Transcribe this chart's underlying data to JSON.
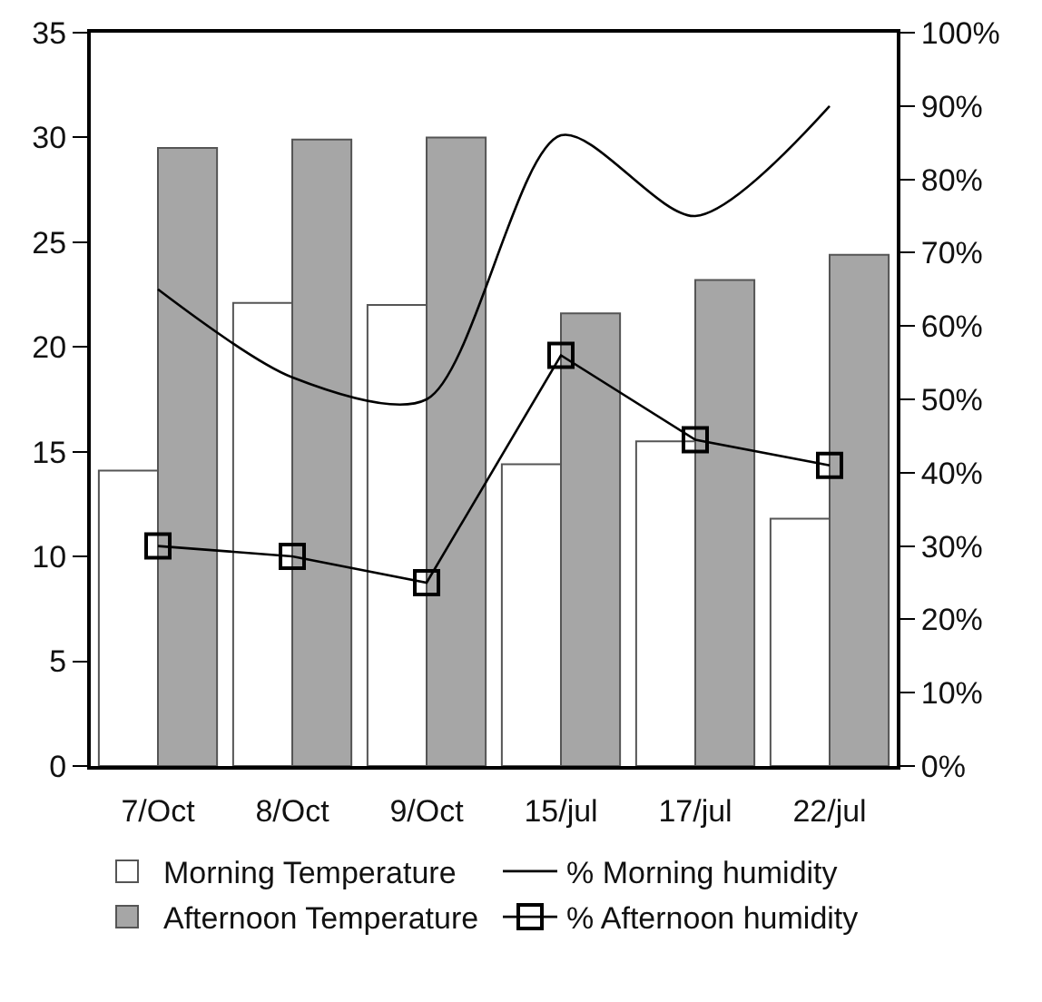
{
  "chart_data": {
    "type": "bar",
    "categories": [
      "7/Oct",
      "8/Oct",
      "9/Oct",
      "15/jul",
      "17/jul",
      "22/jul"
    ],
    "series": [
      {
        "name": "Morning Temperature",
        "color": "#ffffff",
        "values": [
          14.1,
          22.1,
          22.0,
          14.4,
          15.5,
          11.8
        ]
      },
      {
        "name": "Afternoon Temperature",
        "color": "#a6a6a6",
        "values": [
          29.5,
          29.9,
          30.0,
          21.6,
          23.2,
          24.4
        ]
      },
      {
        "name": "% Morning humidity",
        "type": "line",
        "axis": "y2",
        "color": "#000000",
        "marker": "none",
        "values": [
          65,
          53,
          50,
          86,
          75,
          90
        ]
      },
      {
        "name": "% Afternoon humidity",
        "type": "line",
        "axis": "y2",
        "color": "#000000",
        "marker": "square",
        "values": [
          30,
          28.6,
          25,
          56,
          44.5,
          41
        ]
      }
    ],
    "ylim": [
      0,
      35
    ],
    "yticks": [
      0,
      5,
      10,
      15,
      20,
      25,
      30,
      35
    ],
    "y2lim": [
      0,
      100
    ],
    "y2ticks": [
      {
        "value": 0,
        "label": "0%"
      },
      {
        "value": 10,
        "label": "10%"
      },
      {
        "value": 20,
        "label": "20%"
      },
      {
        "value": 30,
        "label": "30%"
      },
      {
        "value": 40,
        "label": "40%"
      },
      {
        "value": 50,
        "label": "50%"
      },
      {
        "value": 60,
        "label": "60%"
      },
      {
        "value": 70,
        "label": "70%"
      },
      {
        "value": 80,
        "label": "80%"
      },
      {
        "value": 90,
        "label": "90%"
      },
      {
        "value": 100,
        "label": "100%"
      }
    ],
    "grid": false,
    "legend": "bottom"
  }
}
